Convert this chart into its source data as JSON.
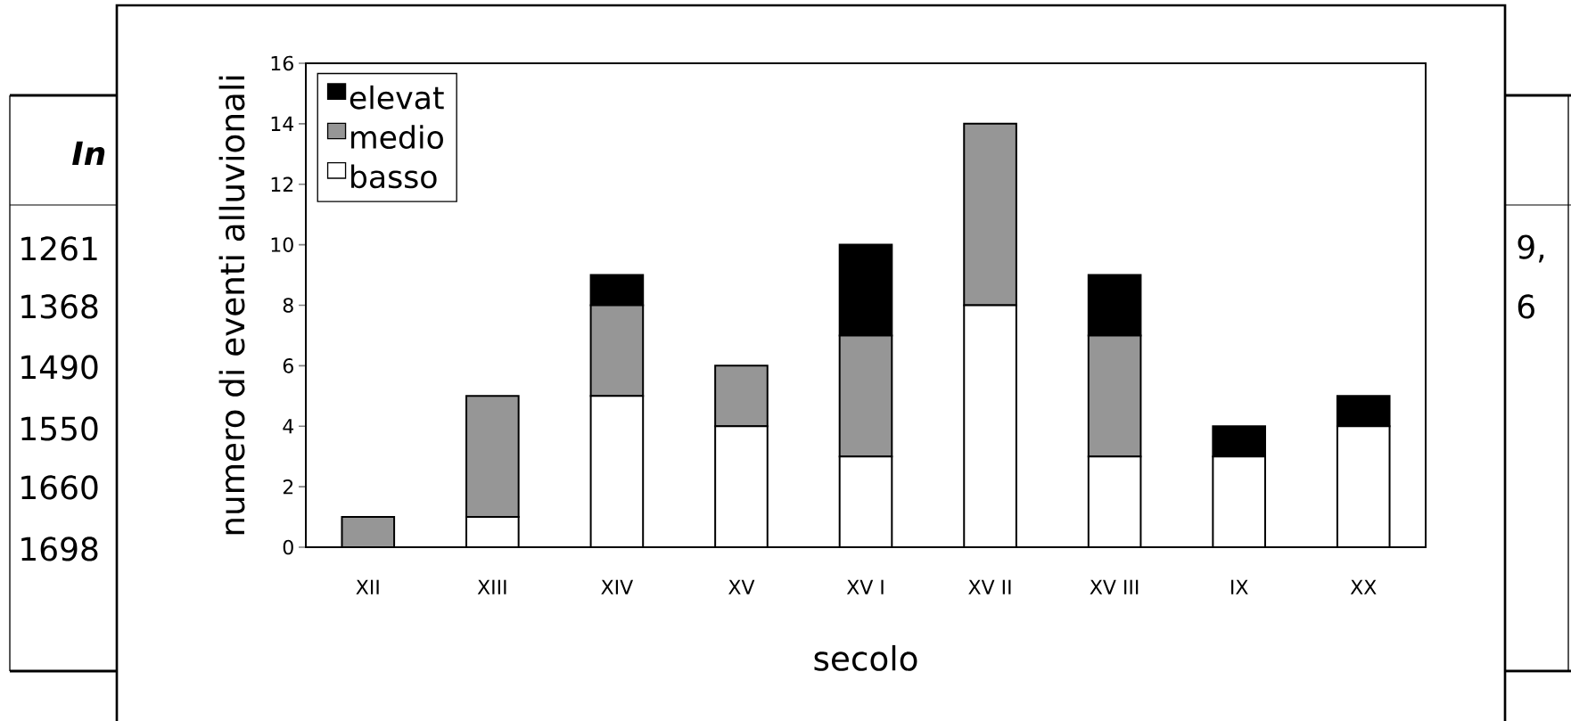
{
  "chart_data": {
    "type": "bar",
    "stacked": true,
    "xlabel": "secolo",
    "ylabel": "numero di eventi alluvionali",
    "categories": [
      "XII",
      "XIII",
      "XIV",
      "XV",
      "XV I",
      "XV II",
      "XV III",
      "IX",
      "XX"
    ],
    "series": [
      {
        "name": "basso",
        "color": "#ffffff",
        "values": [
          0,
          1,
          5,
          4,
          3,
          8,
          3,
          3,
          4
        ]
      },
      {
        "name": "medio",
        "color": "#969696",
        "values": [
          1,
          4,
          3,
          2,
          4,
          6,
          4,
          0,
          0
        ]
      },
      {
        "name": "elevat",
        "color": "#000000",
        "values": [
          0,
          0,
          1,
          0,
          3,
          0,
          2,
          1,
          1
        ]
      }
    ],
    "ylim": [
      0,
      16
    ],
    "yticks": [
      0,
      2,
      4,
      6,
      8,
      10,
      12,
      14,
      16
    ],
    "grid": false,
    "legend": "top left",
    "annotations": [
      "In",
      "1261",
      "1368",
      "1490",
      "1550",
      "1660",
      "1698",
      "9,",
      "6"
    ]
  }
}
